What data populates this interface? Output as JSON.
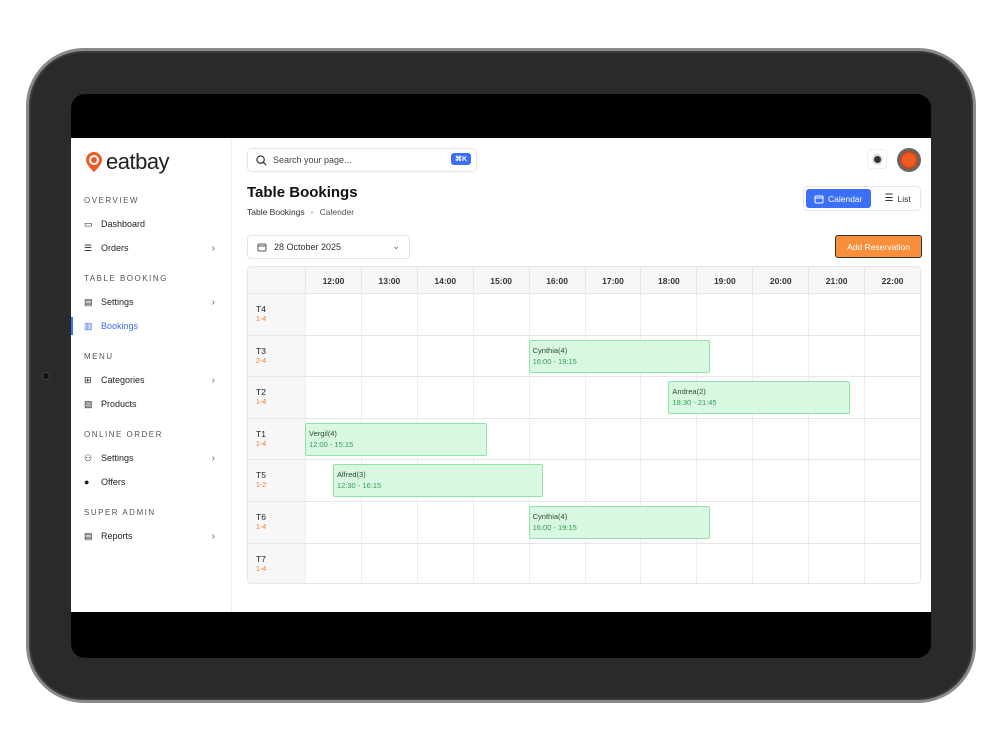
{
  "brand": {
    "name": "eatbay",
    "accent": "#f05a28"
  },
  "sidebar": {
    "sections": [
      {
        "label": "OVERVIEW",
        "items": [
          {
            "label": "Dashboard",
            "icon": "folder-icon",
            "chevron": false
          },
          {
            "label": "Orders",
            "icon": "list-icon",
            "chevron": true
          }
        ]
      },
      {
        "label": "TABLE BOOKING",
        "items": [
          {
            "label": "Settings",
            "icon": "clipboard-icon",
            "chevron": true
          },
          {
            "label": "Bookings",
            "icon": "layout-icon",
            "chevron": false,
            "active": true
          }
        ]
      },
      {
        "label": "MENU",
        "items": [
          {
            "label": "Categories",
            "icon": "grid-icon",
            "chevron": true
          },
          {
            "label": "Products",
            "icon": "image-icon",
            "chevron": false
          }
        ]
      },
      {
        "label": "ONLINE ORDER",
        "items": [
          {
            "label": "Settings",
            "icon": "users-icon",
            "chevron": true
          },
          {
            "label": "Offers",
            "icon": "badge-icon",
            "chevron": false
          }
        ]
      },
      {
        "label": "SUPER ADMIN",
        "items": [
          {
            "label": "Reports",
            "icon": "report-icon",
            "chevron": true
          }
        ]
      }
    ]
  },
  "search": {
    "placeholder": "Search your page...",
    "shortcut": "⌘K"
  },
  "header": {
    "title": "Table Bookings",
    "breadcrumb": [
      "Table Bookings",
      "Calender"
    ]
  },
  "view_toggle": {
    "calendar": "Calendar",
    "list": "List",
    "selected": "Calendar"
  },
  "date_picker": {
    "value": "28 October 2025"
  },
  "add_button": "Add Reservation",
  "colors": {
    "primary": "#3b6ff5",
    "orange": "#f98f3a",
    "booking_bg": "#d9f8e2",
    "booking_border": "#8fe5a8"
  },
  "calendar": {
    "hours": [
      "12:00",
      "13:00",
      "14:00",
      "15:00",
      "16:00",
      "17:00",
      "18:00",
      "19:00",
      "20:00",
      "21:00",
      "22:00"
    ],
    "tables": [
      {
        "name": "T4",
        "capacity": "1-4",
        "bookings": []
      },
      {
        "name": "T3",
        "capacity": "2-4",
        "bookings": [
          {
            "name": "Cynthia(4)",
            "time": "16:00 - 19:15",
            "start": 16,
            "end": 19.25
          }
        ]
      },
      {
        "name": "T2",
        "capacity": "1-4",
        "bookings": [
          {
            "name": "Andrea(2)",
            "time": "18:30 - 21:45",
            "start": 18.5,
            "end": 21.75
          }
        ]
      },
      {
        "name": "T1",
        "capacity": "1-4",
        "bookings": [
          {
            "name": "Vergil(4)",
            "time": "12:00 - 15:15",
            "start": 12,
            "end": 15.25
          }
        ]
      },
      {
        "name": "T5",
        "capacity": "1-2",
        "bookings": [
          {
            "name": "Alfred(3)",
            "time": "12:30 - 16:15",
            "start": 12.5,
            "end": 16.25
          }
        ]
      },
      {
        "name": "T6",
        "capacity": "1-4",
        "bookings": [
          {
            "name": "Cynthia(4)",
            "time": "16:00 - 19:15",
            "start": 16,
            "end": 19.25
          }
        ]
      },
      {
        "name": "T7",
        "capacity": "1-4",
        "bookings": []
      }
    ]
  }
}
